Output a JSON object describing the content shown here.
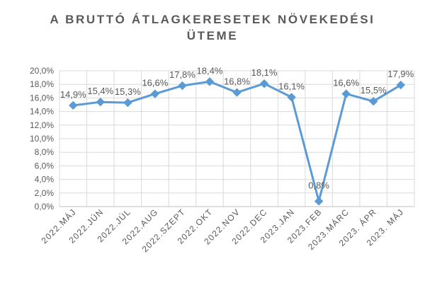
{
  "chart_data": {
    "type": "line",
    "title_lines": [
      "A BRUTTÓ ÁTLAGKERESETEK NÖVEKEDÉSI",
      "ÜTEME"
    ],
    "categories": [
      "2022.MÁJ",
      "2022.JÚN",
      "2022.JÚL",
      "2022.AUG",
      "2022.SZEPT",
      "2022.OKT",
      "2022.NOV",
      "2022.DEC",
      "2023.JAN",
      "2023.FEB",
      "2023.MÁRC",
      "2023. ÁPR",
      "2023. MÁJ"
    ],
    "values": [
      14.9,
      15.4,
      15.3,
      16.6,
      17.8,
      18.4,
      16.8,
      18.1,
      16.1,
      0.8,
      16.6,
      15.5,
      17.9
    ],
    "data_labels": [
      "14,9%",
      "15,4%",
      "15,3%",
      "16,6%",
      "17,8%",
      "18,4%",
      "16,8%",
      "18,1%",
      "16,1%",
      "0,8%",
      "16,6%",
      "15,5%",
      "17,9%"
    ],
    "y_ticks": [
      "0,0%",
      "2,0%",
      "4,0%",
      "6,0%",
      "8,0%",
      "10,0%",
      "12,0%",
      "14,0%",
      "16,0%",
      "18,0%",
      "20,0%"
    ],
    "ylim": [
      0,
      20
    ],
    "ystep": 2,
    "grid": "horizontal",
    "legend": "none",
    "marker": "diamond",
    "colors": {
      "line": "#5B9BD5",
      "grid": "#D9D9D9",
      "axis": "#BFBFBF",
      "text": "#595959",
      "title": "#595959"
    }
  }
}
